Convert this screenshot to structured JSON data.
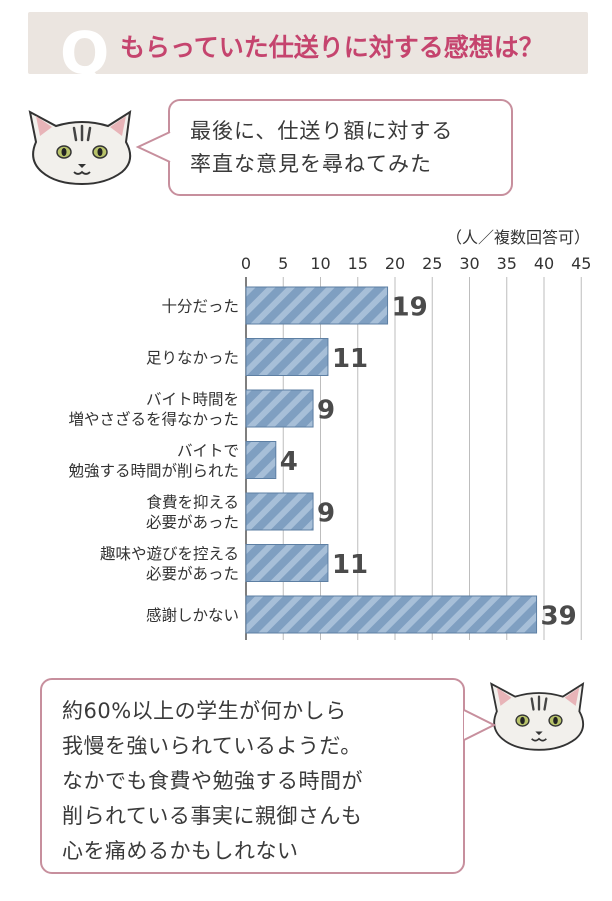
{
  "header": {
    "q_letter": "Q",
    "title": "もらっていた仕送りに対する感想は？"
  },
  "bubble1": {
    "lines": [
      "最後に、仕送り額に対する",
      "率直な意見を尋ねてみた"
    ]
  },
  "bubble2": {
    "lines": [
      "約60%以上の学生が何かしら",
      "我慢を強いられているようだ。",
      "なかでも食費や勉強する時間が",
      "削られている事実に親御さんも",
      "心を痛めるかもしれない"
    ]
  },
  "unit_label": "（人／複数回答可）",
  "colors": {
    "bar_fill": "#7f9fc1",
    "bar_stripe": "#a7bfd8",
    "bar_stroke": "#5d7fa3",
    "header_bg": "#ebe5e0",
    "title_color": "#c5446e",
    "bubble_border": "#c78f9d"
  },
  "icons": [
    "cat-face-icon"
  ],
  "chart_data": {
    "type": "bar",
    "orientation": "horizontal",
    "categories": [
      [
        "十分だった"
      ],
      [
        "足りなかった"
      ],
      [
        "バイト時間を",
        "増やさざるを得なかった"
      ],
      [
        "バイトで",
        "勉強する時間が削られた"
      ],
      [
        "食費を抑える",
        "必要があった"
      ],
      [
        "趣味や遊びを控える",
        "必要があった"
      ],
      [
        "感謝しかない"
      ]
    ],
    "values": [
      19,
      11,
      9,
      4,
      9,
      11,
      39
    ],
    "xlim": [
      0,
      45
    ],
    "xticks": [
      0,
      5,
      10,
      15,
      20,
      25,
      30,
      35,
      40,
      45
    ],
    "grid": true,
    "xlabel": "",
    "ylabel": ""
  }
}
